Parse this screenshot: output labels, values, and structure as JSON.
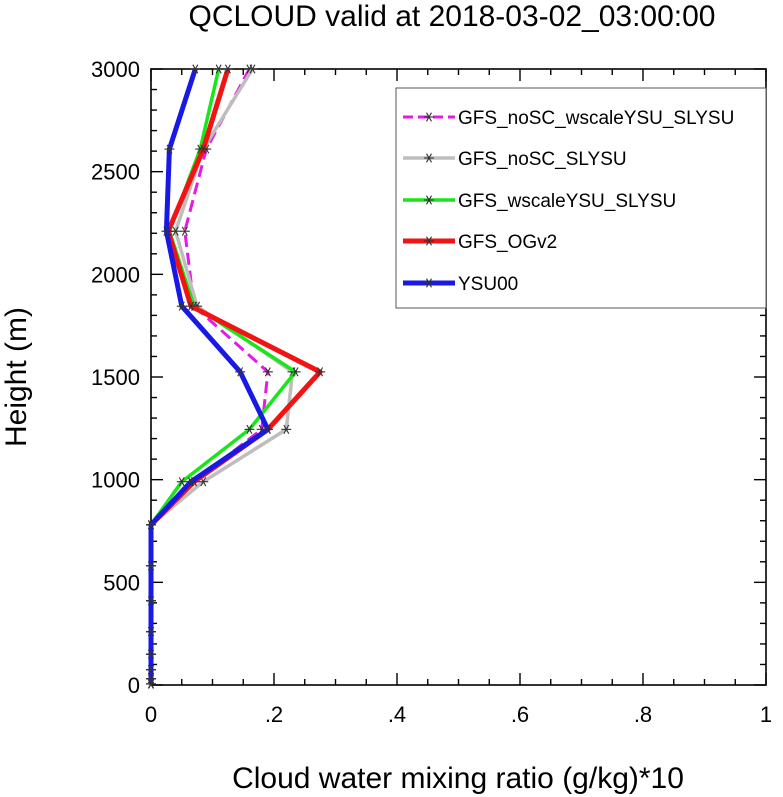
{
  "chart_data": {
    "type": "line",
    "title": "QCLOUD valid at 2018-03-02_03:00:00",
    "xlabel": "Cloud water mixing ratio (g/kg)*10",
    "ylabel": "Height (m)",
    "xlim": [
      0,
      1
    ],
    "ylim": [
      0,
      3000
    ],
    "x_ticks": [
      0,
      0.2,
      0.4,
      0.6,
      0.8,
      1
    ],
    "x_tick_labels": [
      "0",
      ".2",
      ".4",
      ".6",
      ".8",
      "1"
    ],
    "y_ticks": [
      0,
      500,
      1000,
      1500,
      2000,
      2500,
      3000
    ],
    "y_tick_labels": [
      "0",
      "500",
      "1000",
      "1500",
      "2000",
      "2500",
      "3000"
    ],
    "grid": false,
    "legend_position": "top-right",
    "series": [
      {
        "name": "GFS_noSC_wscaleYSU_SLYSU",
        "color": "#e619e6",
        "dash": true,
        "marker": "asterisk",
        "points": [
          [
            0,
            5
          ],
          [
            0,
            30
          ],
          [
            0,
            75
          ],
          [
            0,
            150
          ],
          [
            0,
            260
          ],
          [
            0,
            410
          ],
          [
            0,
            580
          ],
          [
            0,
            780
          ],
          [
            0.07,
            990
          ],
          [
            0.18,
            1245
          ],
          [
            0.19,
            1525
          ],
          [
            0.07,
            1845
          ],
          [
            0.055,
            2210
          ],
          [
            0.09,
            2610
          ],
          [
            0.16,
            3000
          ]
        ]
      },
      {
        "name": "GFS_noSC_SLYSU",
        "color": "#bebebe",
        "dash": false,
        "marker": "asterisk",
        "points": [
          [
            0,
            5
          ],
          [
            0,
            30
          ],
          [
            0,
            75
          ],
          [
            0,
            150
          ],
          [
            0,
            260
          ],
          [
            0,
            410
          ],
          [
            0,
            580
          ],
          [
            0,
            780
          ],
          [
            0.085,
            990
          ],
          [
            0.22,
            1245
          ],
          [
            0.23,
            1525
          ],
          [
            0.075,
            1845
          ],
          [
            0.04,
            2210
          ],
          [
            0.085,
            2610
          ],
          [
            0.165,
            3000
          ]
        ]
      },
      {
        "name": "GFS_wscaleYSU_SLYSU",
        "color": "#19e619",
        "dash": false,
        "marker": "asterisk",
        "points": [
          [
            0,
            5
          ],
          [
            0,
            30
          ],
          [
            0,
            75
          ],
          [
            0,
            150
          ],
          [
            0,
            260
          ],
          [
            0,
            410
          ],
          [
            0,
            580
          ],
          [
            0,
            780
          ],
          [
            0.05,
            990
          ],
          [
            0.16,
            1245
          ],
          [
            0.235,
            1525
          ],
          [
            0.07,
            1845
          ],
          [
            0.03,
            2210
          ],
          [
            0.08,
            2610
          ],
          [
            0.11,
            3000
          ]
        ]
      },
      {
        "name": "GFS_OGv2",
        "color": "#f21313",
        "dash": false,
        "marker": "asterisk",
        "points": [
          [
            0,
            5
          ],
          [
            0,
            30
          ],
          [
            0,
            75
          ],
          [
            0,
            150
          ],
          [
            0,
            260
          ],
          [
            0,
            410
          ],
          [
            0,
            580
          ],
          [
            0,
            780
          ],
          [
            0.07,
            990
          ],
          [
            0.19,
            1245
          ],
          [
            0.275,
            1525
          ],
          [
            0.065,
            1845
          ],
          [
            0.028,
            2210
          ],
          [
            0.085,
            2610
          ],
          [
            0.125,
            3000
          ]
        ]
      },
      {
        "name": "YSU00",
        "color": "#1919e6",
        "dash": false,
        "marker": "asterisk",
        "points": [
          [
            0,
            5
          ],
          [
            0,
            30
          ],
          [
            0,
            75
          ],
          [
            0,
            150
          ],
          [
            0,
            260
          ],
          [
            0,
            410
          ],
          [
            0,
            580
          ],
          [
            0,
            780
          ],
          [
            0.065,
            990
          ],
          [
            0.19,
            1245
          ],
          [
            0.145,
            1525
          ],
          [
            0.05,
            1845
          ],
          [
            0.025,
            2210
          ],
          [
            0.03,
            2610
          ],
          [
            0.072,
            3000
          ]
        ]
      }
    ]
  }
}
